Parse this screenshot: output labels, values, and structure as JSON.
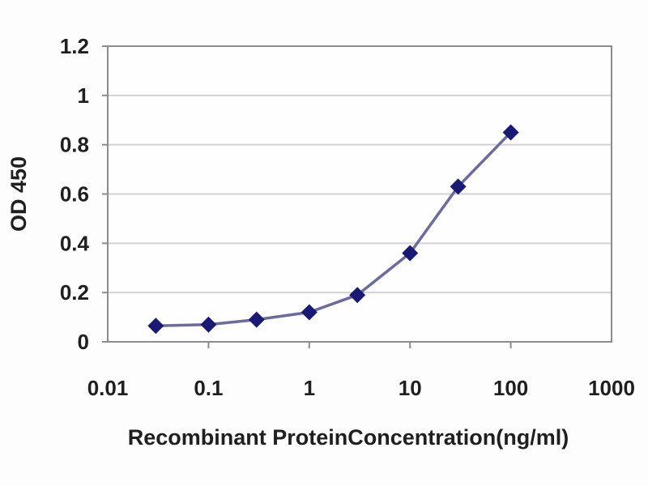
{
  "figure": {
    "description": "ELISA standard curve line chart"
  },
  "chart_data": {
    "type": "line",
    "x": [
      0.03,
      0.1,
      0.3,
      1,
      3,
      10,
      30,
      100
    ],
    "values": [
      0.065,
      0.07,
      0.09,
      0.12,
      0.19,
      0.36,
      0.63,
      0.85
    ],
    "title": "",
    "xlabel": "Recombinant ProteinConcentration(ng/ml)",
    "ylabel": "OD 450",
    "x_scale": "log",
    "xlim": [
      0.01,
      1000
    ],
    "ylim": [
      0,
      1.2
    ],
    "x_tick_labels": [
      "0.01",
      "0.1",
      "1",
      "10",
      "100",
      "1000"
    ],
    "x_tick_values": [
      0.01,
      0.1,
      1,
      10,
      100,
      1000
    ],
    "y_tick_labels": [
      "0",
      "0.2",
      "0.4",
      "0.6",
      "0.8",
      "1",
      "1.2"
    ],
    "y_tick_values": [
      0,
      0.2,
      0.4,
      0.6,
      0.8,
      1.0,
      1.2
    ],
    "grid": "horizontal",
    "legend": "none",
    "marker": "diamond",
    "colors": {
      "line": "#6b6b9e",
      "marker": "#1a1a74",
      "grid": "#d2d2d2",
      "plot_border": "#8c8c8c",
      "tick": "#8c8c8c",
      "text": "#1f1f1f",
      "background": "#fdfdfd",
      "plot_background": "#fefefe"
    }
  }
}
